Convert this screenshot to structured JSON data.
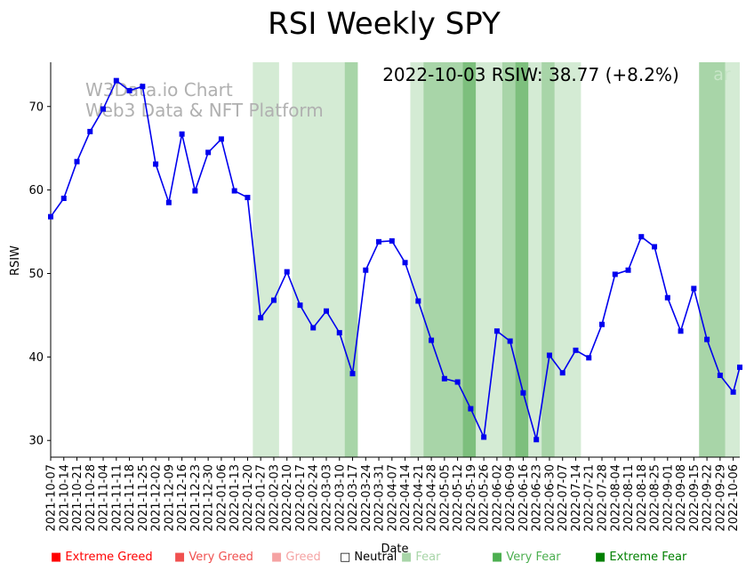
{
  "chart_data": {
    "type": "line",
    "title": "RSI Weekly SPY",
    "xlabel": "Date",
    "ylabel": "RSIW",
    "ylim": [
      28,
      75.3
    ],
    "yticks": [
      30,
      40,
      50,
      60,
      70
    ],
    "grid": false,
    "annotation": "2022-10-03 RSIW: 38.77 (+8.2%)",
    "watermark": [
      "W3Data.io Chart",
      "Web3 Data & NFT Platform"
    ],
    "categories": [
      "2021-10-07",
      "2021-10-14",
      "2021-10-21",
      "2021-10-28",
      "2021-11-04",
      "2021-11-11",
      "2021-11-18",
      "2021-11-25",
      "2021-12-02",
      "2021-12-09",
      "2021-12-16",
      "2021-12-23",
      "2021-12-30",
      "2022-01-06",
      "2022-01-13",
      "2022-01-20",
      "2022-01-27",
      "2022-02-03",
      "2022-02-10",
      "2022-02-17",
      "2022-02-24",
      "2022-03-03",
      "2022-03-10",
      "2022-03-17",
      "2022-03-24",
      "2022-03-31",
      "2022-04-07",
      "2022-04-14",
      "2022-04-21",
      "2022-04-28",
      "2022-05-05",
      "2022-05-12",
      "2022-05-19",
      "2022-05-26",
      "2022-06-02",
      "2022-06-09",
      "2022-06-16",
      "2022-06-23",
      "2022-06-30",
      "2022-07-07",
      "2022-07-14",
      "2022-07-21",
      "2022-07-28",
      "2022-08-04",
      "2022-08-11",
      "2022-08-18",
      "2022-08-25",
      "2022-09-01",
      "2022-09-08",
      "2022-09-15",
      "2022-09-22",
      "2022-09-29",
      "2022-10-06"
    ],
    "series": [
      {
        "x": [
          0,
          1,
          2,
          3,
          4,
          5,
          6,
          7,
          8,
          9,
          10,
          11,
          12,
          13,
          14,
          15,
          16,
          17,
          18,
          19,
          20,
          21,
          22,
          23,
          24,
          25,
          26,
          27,
          28,
          29,
          30,
          31,
          32,
          33,
          34,
          35,
          36,
          37,
          38,
          39,
          40,
          41,
          42,
          43,
          44,
          45,
          46,
          47,
          48,
          49,
          50,
          51,
          52,
          52.5
        ],
        "values": [
          56.8,
          59.0,
          63.4,
          67.0,
          69.7,
          73.1,
          71.9,
          72.4,
          63.1,
          58.5,
          66.7,
          59.9,
          64.5,
          66.1,
          59.9,
          59.1,
          44.7,
          46.8,
          50.2,
          46.2,
          43.5,
          45.5,
          42.9,
          38.0,
          50.4,
          53.8,
          53.9,
          51.3,
          46.7,
          42.0,
          37.4,
          37.0,
          33.8,
          30.4,
          43.1,
          41.9,
          35.7,
          30.1,
          40.2,
          38.1,
          40.8,
          39.9,
          43.9,
          49.9,
          50.4,
          54.4,
          53.2,
          47.1,
          43.1,
          48.2,
          42.1,
          37.8,
          35.8,
          38.77
        ],
        "color": "#0000ee"
      }
    ],
    "sentiment_bands": [
      {
        "x0": 15.4,
        "x1": 17.4,
        "level": "Fear"
      },
      {
        "x0": 18.4,
        "x1": 22.4,
        "level": "Fear"
      },
      {
        "x0": 22.4,
        "x1": 23.4,
        "level": "Very Fear"
      },
      {
        "x0": 27.4,
        "x1": 28.4,
        "level": "Fear"
      },
      {
        "x0": 28.4,
        "x1": 31.4,
        "level": "Very Fear"
      },
      {
        "x0": 31.4,
        "x1": 32.4,
        "level": "Extreme Fear"
      },
      {
        "x0": 32.4,
        "x1": 34.4,
        "level": "Fear"
      },
      {
        "x0": 34.4,
        "x1": 35.4,
        "level": "Very Fear"
      },
      {
        "x0": 35.4,
        "x1": 36.4,
        "level": "Extreme Fear"
      },
      {
        "x0": 36.4,
        "x1": 37.4,
        "level": "Fear"
      },
      {
        "x0": 37.4,
        "x1": 38.4,
        "level": "Very Fear"
      },
      {
        "x0": 38.4,
        "x1": 40.4,
        "level": "Fear"
      },
      {
        "x0": 49.4,
        "x1": 51.4,
        "level": "Very Fear"
      },
      {
        "x0": 51.4,
        "x1": 53.0,
        "level": "Fear"
      }
    ],
    "legend": [
      {
        "label": "Extreme Greed",
        "color": "#ff0000"
      },
      {
        "label": "Very Greed",
        "color": "#f0504f"
      },
      {
        "label": "Greed",
        "color": "#f5a3a3"
      },
      {
        "label": "Neutral",
        "color": "#000000"
      },
      {
        "label": "Fear",
        "color": "#a8d5a8"
      },
      {
        "label": "Very Fear",
        "color": "#4caf50"
      },
      {
        "label": "Extreme Fear",
        "color": "#008000"
      }
    ],
    "band_colors": {
      "Fear": "#d4ebd4",
      "Very Fear": "#a8d5a8",
      "Extreme Fear": "#7dbf7d"
    },
    "legend_placement": "bottom",
    "overflow_label": "ar"
  }
}
